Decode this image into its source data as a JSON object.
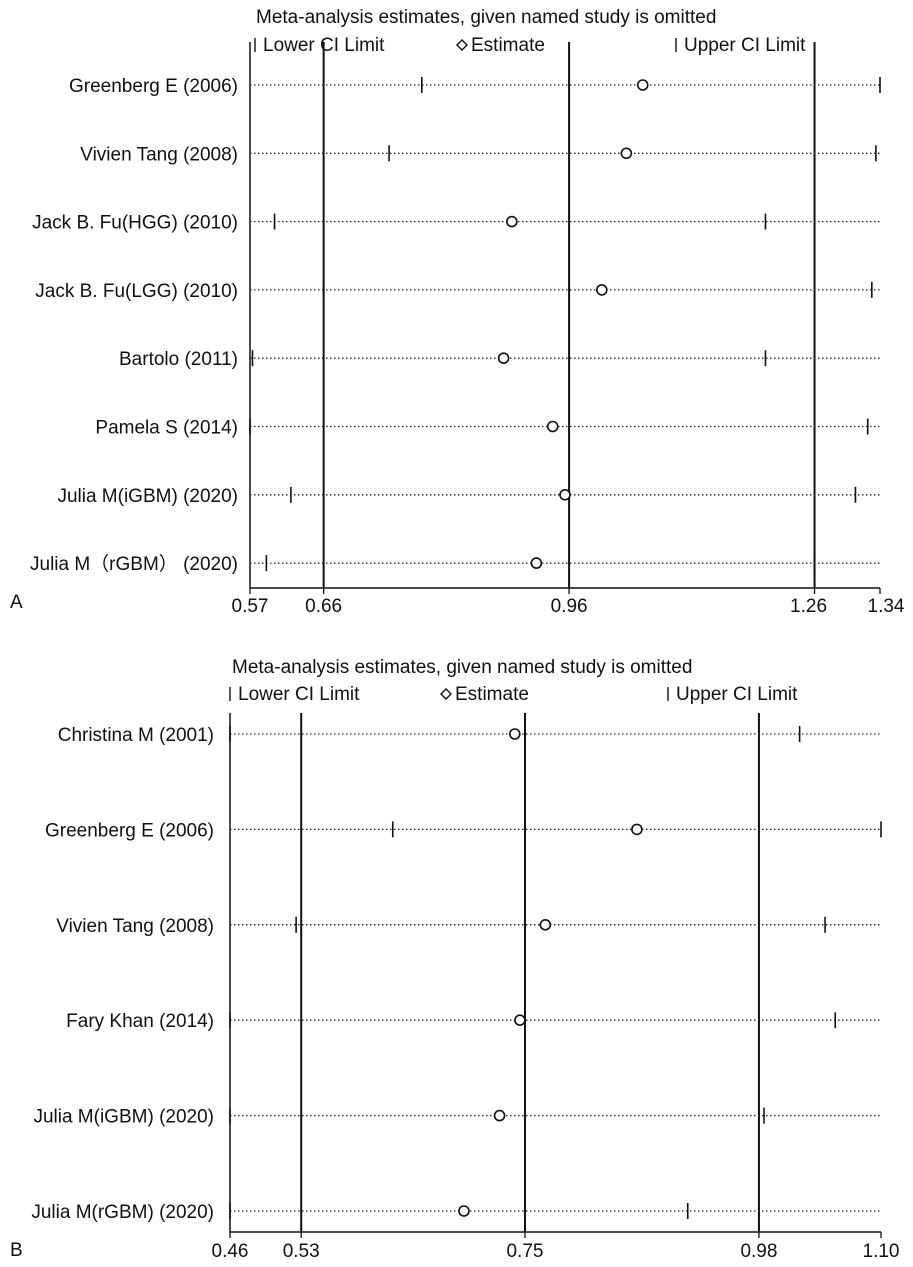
{
  "chart_data": [
    {
      "type": "forest",
      "panel_label": "A",
      "title": "Meta-analysis estimates, given named study is omitted",
      "legend": {
        "lower": "Lower CI Limit",
        "estimate": "Estimate",
        "upper": "Upper CI Limit"
      },
      "xlim": [
        0.57,
        1.34
      ],
      "xticks": [
        0.57,
        0.66,
        0.96,
        1.26,
        1.34
      ],
      "xtick_labels": [
        "0.57",
        "0.66",
        "0.96",
        "1.26",
        "1.34"
      ],
      "reference_lines": [
        0.66,
        0.96,
        1.26
      ],
      "studies": [
        {
          "label": "Greenberg E (2006)",
          "lower": 0.78,
          "estimate": 1.05,
          "upper": 1.34
        },
        {
          "label": "Vivien Tang (2008)",
          "lower": 0.74,
          "estimate": 1.03,
          "upper": 1.335
        },
        {
          "label": "Jack B. Fu(HGG) (2010)",
          "lower": 0.6,
          "estimate": 0.89,
          "upper": 1.2
        },
        {
          "label": "Jack B. Fu(LGG) (2010)",
          "lower": 0.66,
          "estimate": 1.0,
          "upper": 1.33
        },
        {
          "label": "Bartolo (2011)",
          "lower": 0.573,
          "estimate": 0.88,
          "upper": 1.2
        },
        {
          "label": "Pamela S (2014)",
          "lower": 0.57,
          "estimate": 0.94,
          "upper": 1.325
        },
        {
          "label": "Julia M(iGBM) (2020)",
          "lower": 0.62,
          "estimate": 0.955,
          "upper": 1.31
        },
        {
          "label": "Julia M（rGBM） (2020)",
          "lower": 0.59,
          "estimate": 0.92,
          "upper": 1.26
        }
      ]
    },
    {
      "type": "forest",
      "panel_label": "B",
      "title": "Meta-analysis estimates, given named study is omitted",
      "legend": {
        "lower": "Lower CI Limit",
        "estimate": "Estimate",
        "upper": "Upper CI Limit"
      },
      "xlim": [
        0.46,
        1.1
      ],
      "xticks": [
        0.46,
        0.53,
        0.75,
        0.98,
        1.1
      ],
      "xtick_labels": [
        "0.46",
        "0.53",
        "0.75",
        "0.98",
        "1.10"
      ],
      "reference_lines": [
        0.53,
        0.75,
        0.98
      ],
      "studies": [
        {
          "label": "Christina M (2001)",
          "lower": 0.46,
          "estimate": 0.74,
          "upper": 1.02
        },
        {
          "label": "Greenberg E (2006)",
          "lower": 0.62,
          "estimate": 0.86,
          "upper": 1.1
        },
        {
          "label": "Vivien Tang (2008)",
          "lower": 0.525,
          "estimate": 0.77,
          "upper": 1.045
        },
        {
          "label": "Fary Khan (2014)",
          "lower": 0.46,
          "estimate": 0.745,
          "upper": 1.055
        },
        {
          "label": "Julia M(iGBM) (2020)",
          "lower": 0.46,
          "estimate": 0.725,
          "upper": 0.985
        },
        {
          "label": "Julia M(rGBM) (2020)",
          "lower": 0.46,
          "estimate": 0.69,
          "upper": 0.91
        }
      ]
    }
  ]
}
